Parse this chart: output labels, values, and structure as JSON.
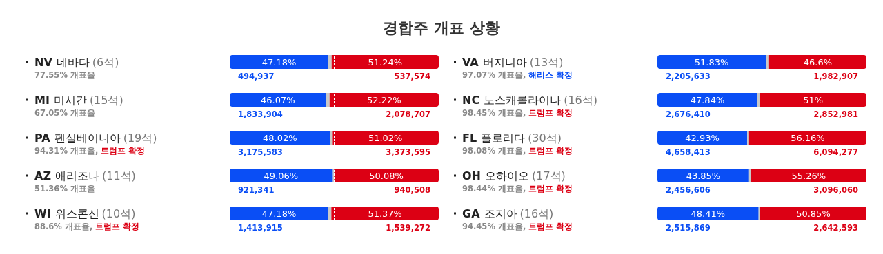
{
  "chart_data": [
    {
      "type": "bar",
      "title": "경합주 개표 상황",
      "orientation": "horizontal",
      "stacked": true,
      "tick_labels": "y",
      "xlim": [
        0,
        100
      ],
      "categories": [
        "NV 네바다 (6석)",
        "MI 미시간 (15석)",
        "PA 펜실베이니아 (19석)",
        "AZ 애리조나 (11석)",
        "WI 위스콘신 (10석)"
      ],
      "series": [
        {
          "color": "#0a4ef5",
          "values": [
            47.18,
            46.07,
            48.02,
            49.06,
            47.18
          ],
          "value_labels": [
            "47.18%",
            "46.07%",
            "48.02%",
            "49.06%",
            "47.18%"
          ]
        },
        {
          "color": "#c8c8c8",
          "values": [
            1.58,
            1.71,
            0.96,
            0.86,
            1.45
          ]
        },
        {
          "color": "#dc0014",
          "values": [
            51.24,
            52.22,
            51.02,
            50.08,
            51.37
          ],
          "value_labels": [
            "51.24%",
            "52.22%",
            "51.02%",
            "50.08%",
            "51.37%"
          ]
        }
      ],
      "ref_lines": [
        {
          "axis": "x",
          "value": 50,
          "color": "#ffffff",
          "line_style": "dashed"
        }
      ],
      "annotations": [
        "77.55% 개표율",
        "67.05% 개표율",
        "94.31% 개표율, 트럼프 확정",
        "51.36% 개표율",
        "88.6% 개표율, 트럼프 확정",
        "494,937",
        "537,574",
        "1,833,904",
        "2,078,707",
        "3,175,583",
        "3,373,595",
        "921,341",
        "940,508",
        "1,413,915",
        "1,539,272"
      ]
    },
    {
      "type": "bar",
      "orientation": "horizontal",
      "stacked": true,
      "tick_labels": "y",
      "xlim": [
        0,
        100
      ],
      "categories": [
        "VA 버지니아 (13석)",
        "NC 노스캐롤라이나 (16석)",
        "FL 플로리다 (30석)",
        "OH 오하이오 (17석)",
        "GA 조지아 (16석)"
      ],
      "series": [
        {
          "color": "#0a4ef5",
          "values": [
            51.83,
            47.84,
            42.93,
            43.85,
            48.41
          ],
          "value_labels": [
            "51.83%",
            "47.84%",
            "42.93%",
            "43.85%",
            "48.41%"
          ]
        },
        {
          "color": "#c8c8c8",
          "values": [
            1.57,
            1.16,
            0.91,
            0.89,
            0.74
          ]
        },
        {
          "color": "#dc0014",
          "values": [
            46.6,
            51,
            56.16,
            55.26,
            50.85
          ],
          "value_labels": [
            "46.6%",
            "51%",
            "56.16%",
            "55.26%",
            "50.85%"
          ]
        }
      ],
      "ref_lines": [
        {
          "axis": "x",
          "value": 50,
          "color": "#ffffff",
          "line_style": "dashed"
        }
      ],
      "annotations": [
        "97.07% 개표율, 해리스 확정",
        "98.45% 개표율, 트럼프 확정",
        "98.08% 개표율, 트럼프 확정",
        "98.44% 개표율, 트럼프 확정",
        "94.45% 개표율, 트럼프 확정",
        "2,205,633",
        "1,982,907",
        "2,676,410",
        "2,852,981",
        "4,658,413",
        "6,094,277",
        "2,456,606",
        "3,096,060",
        "2,515,869",
        "2,642,593"
      ]
    }
  ]
}
